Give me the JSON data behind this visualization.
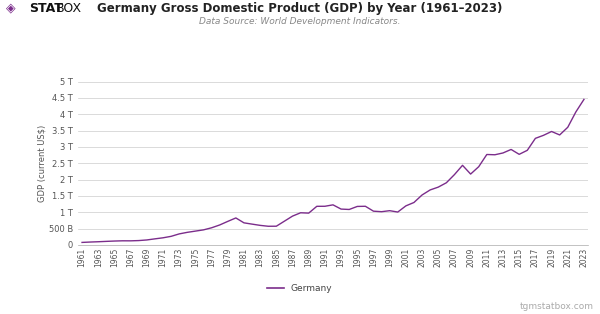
{
  "title": "Germany Gross Domestic Product (GDP) by Year (1961–2023)",
  "subtitle": "Data Source: World Development Indicators.",
  "ylabel": "GDP (current US$)",
  "line_color": "#7b2d8b",
  "background_color": "#ffffff",
  "grid_color": "#cccccc",
  "legend_label": "Germany",
  "watermark": "tgmstatbox.com",
  "years": [
    1961,
    1962,
    1963,
    1964,
    1965,
    1966,
    1967,
    1968,
    1969,
    1970,
    1971,
    1972,
    1973,
    1974,
    1975,
    1976,
    1977,
    1978,
    1979,
    1980,
    1981,
    1982,
    1983,
    1984,
    1985,
    1986,
    1987,
    1988,
    1989,
    1990,
    1991,
    1992,
    1993,
    1994,
    1995,
    1996,
    1997,
    1998,
    1999,
    2000,
    2001,
    2002,
    2003,
    2004,
    2005,
    2006,
    2007,
    2008,
    2009,
    2010,
    2011,
    2012,
    2013,
    2014,
    2015,
    2016,
    2017,
    2018,
    2019,
    2020,
    2021,
    2022,
    2023
  ],
  "gdp": [
    76700000000.0,
    88100000000.0,
    97400000000.0,
    108500000000.0,
    118800000000.0,
    125900000000.0,
    125000000000.0,
    133200000000.0,
    152000000000.0,
    185800000000.0,
    217900000000.0,
    262600000000.0,
    337400000000.0,
    385300000000.0,
    422900000000.0,
    460700000000.0,
    524500000000.0,
    610800000000.0,
    720500000000.0,
    826100000000.0,
    676300000000.0,
    636900000000.0,
    598700000000.0,
    571500000000.0,
    573000000000.0,
    727500000000.0,
    882500000000.0,
    984300000000.0,
    974000000000.0,
    1182100000000.0,
    1183600000000.0,
    1227000000000.0,
    1097400000000.0,
    1085500000000.0,
    1178400000000.0,
    1183400000000.0,
    1033300000000.0,
    1017500000000.0,
    1048500000000.0,
    1006600000000.0,
    1195500000000.0,
    1299400000000.0,
    1529100000000.0,
    1683800000000.0,
    1769800000000.0,
    1902900000000.0,
    2152800000000.0,
    2437800000000.0,
    2169800000000.0,
    2395000000000.0,
    2768800000000.0,
    2761000000000.0,
    2815900000000.0,
    2923500000000.0,
    2774000000000.0,
    2896900000000.0,
    3263400000000.0,
    3355800000000.0,
    3473400000000.0,
    3367900000000.0,
    3602700000000.0,
    4072200000000.0,
    4456400000000.0
  ],
  "yticks": [
    0,
    500000000000.0,
    1000000000000.0,
    1500000000000.0,
    2000000000000.0,
    2500000000000.0,
    3000000000000.0,
    3500000000000.0,
    4000000000000.0,
    4500000000000.0,
    5000000000000.0
  ],
  "ytick_labels": [
    "0",
    "500 B",
    "1 T",
    "1.5 T",
    "2 T",
    "2.5 T",
    "3 T",
    "3.5 T",
    "4 T",
    "4.5 T",
    "5 T"
  ],
  "ylim": [
    0,
    5000000000000.0
  ],
  "logo_bold": "STAT",
  "logo_reg": "BOX",
  "logo_diamond": "◈"
}
